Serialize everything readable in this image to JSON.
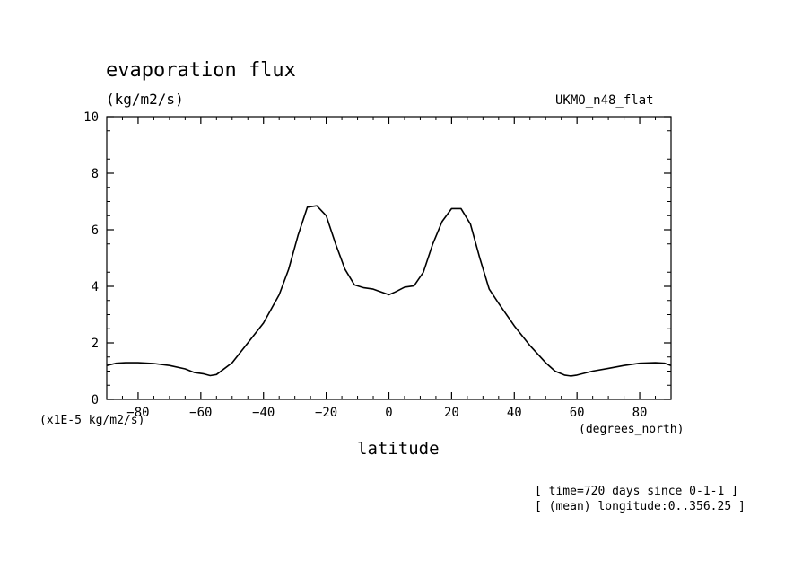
{
  "labels": {
    "title": "evaporation flux",
    "units": "(kg/m2/s)",
    "source": "UKMO_n48_flat",
    "y_scale_note": "(x1E-5 kg/m2/s)",
    "x_unit": "(degrees_north)",
    "x_label": "latitude",
    "note_time": "[ time=720 days since 0-1-1 ]",
    "note_longitude": "[ (mean) longitude:0..356.25 ]"
  },
  "chart_data": {
    "type": "line",
    "title": "evaporation flux",
    "xlabel": "latitude",
    "ylabel": "(kg/m2/s)",
    "xlim": [
      -90,
      90
    ],
    "ylim": [
      0,
      10
    ],
    "x_ticks": [
      -80,
      -60,
      -40,
      -20,
      0,
      20,
      40,
      60,
      80
    ],
    "y_ticks": [
      0,
      2,
      4,
      6,
      8,
      10
    ],
    "grid": false,
    "series": [
      {
        "x": [
          -90,
          -87,
          -84,
          -80,
          -75,
          -70,
          -65,
          -62,
          -59,
          -57,
          -55,
          -50,
          -45,
          -40,
          -35,
          -32,
          -29,
          -26,
          -23,
          -20,
          -17,
          -14,
          -11,
          -8,
          -5,
          -2,
          0,
          2,
          5,
          8,
          11,
          14,
          17,
          20,
          23,
          26,
          29,
          32,
          35,
          40,
          45,
          50,
          53,
          56,
          58,
          60,
          65,
          70,
          75,
          80,
          85,
          88,
          90
        ],
        "y": [
          1.2,
          1.28,
          1.3,
          1.3,
          1.27,
          1.2,
          1.08,
          0.95,
          0.9,
          0.84,
          0.88,
          1.3,
          2.0,
          2.7,
          3.7,
          4.6,
          5.8,
          6.8,
          6.85,
          6.5,
          5.5,
          4.6,
          4.05,
          3.95,
          3.9,
          3.78,
          3.7,
          3.8,
          3.97,
          4.02,
          4.5,
          5.5,
          6.3,
          6.75,
          6.75,
          6.2,
          5.0,
          3.9,
          3.4,
          2.6,
          1.9,
          1.3,
          1.0,
          0.86,
          0.83,
          0.86,
          1.0,
          1.1,
          1.2,
          1.28,
          1.3,
          1.28,
          1.2
        ],
        "color": "#000000"
      }
    ]
  }
}
